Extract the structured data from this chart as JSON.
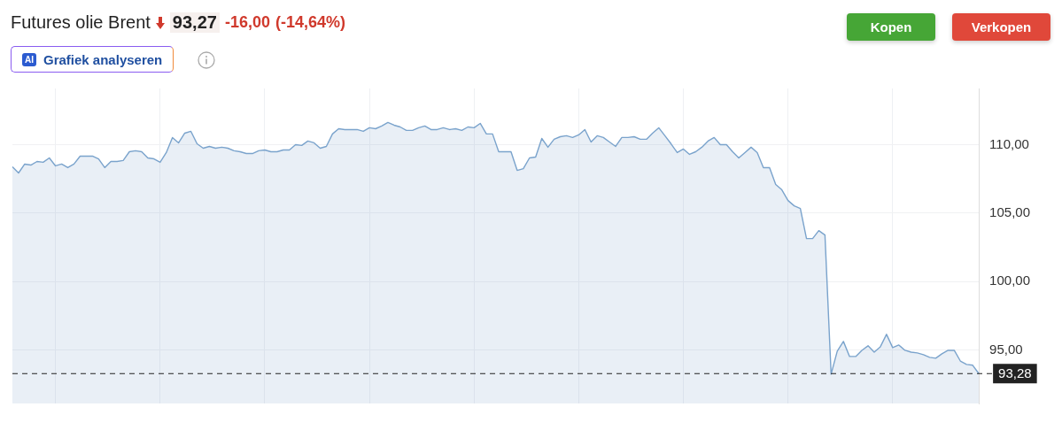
{
  "chart_data": {
    "type": "area",
    "title": "Futures olie Brent",
    "annotations": [
      "93,27",
      "-16,00",
      "(-14,64%)",
      "AI",
      "Grafiek analyseren",
      "Kopen",
      "Verkopen"
    ],
    "categories": [
      null,
      null,
      null,
      null,
      null,
      null,
      null,
      null,
      null,
      null,
      null,
      null,
      null,
      null,
      null,
      null,
      null,
      null,
      null,
      null,
      null,
      null,
      null,
      null,
      null,
      null,
      null,
      null,
      null,
      null,
      null,
      null,
      null,
      null,
      null,
      null,
      null,
      null,
      null,
      null,
      null,
      null,
      null,
      null,
      null,
      null,
      null,
      null,
      null,
      null,
      null,
      null,
      null,
      null,
      null,
      null,
      null,
      null,
      null,
      null,
      null,
      null,
      null,
      null,
      null,
      null,
      null,
      null,
      null,
      null,
      null,
      null,
      null,
      null,
      null,
      null,
      null,
      null,
      null,
      null,
      null,
      null,
      null,
      null,
      null,
      null,
      null,
      null,
      null,
      null,
      null,
      null,
      null,
      null,
      null,
      null,
      null,
      null,
      null,
      null,
      null,
      null,
      null,
      null,
      null,
      null,
      null,
      null,
      null,
      null,
      null,
      null,
      null,
      null,
      null,
      null,
      null,
      null,
      null,
      null,
      null,
      null,
      null,
      null,
      null,
      null,
      null,
      null,
      null,
      null,
      null,
      null,
      null,
      null,
      null,
      null,
      null,
      null,
      null,
      null,
      null,
      null,
      null,
      null,
      null,
      null,
      null,
      null,
      null,
      null,
      null,
      null,
      null,
      null,
      null,
      null,
      null,
      null
    ],
    "series": [
      {
        "color": "#7aa3cc",
        "values": [
          108.38,
          107.93,
          108.58,
          108.51,
          108.77,
          108.71,
          109.03,
          108.45,
          108.58,
          108.32,
          108.58,
          109.16,
          109.16,
          109.16,
          108.96,
          108.32,
          108.77,
          108.77,
          108.84,
          109.48,
          109.55,
          109.48,
          109.03,
          108.96,
          108.71,
          109.42,
          110.52,
          110.13,
          110.84,
          110.97,
          110.06,
          109.74,
          109.87,
          109.74,
          109.81,
          109.74,
          109.55,
          109.48,
          109.35,
          109.35,
          109.55,
          109.61,
          109.48,
          109.48,
          109.61,
          109.61,
          110.0,
          109.94,
          110.26,
          110.13,
          109.74,
          109.87,
          110.78,
          111.16,
          111.1,
          111.1,
          111.1,
          110.97,
          111.23,
          111.16,
          111.36,
          111.62,
          111.42,
          111.29,
          111.04,
          111.04,
          111.23,
          111.36,
          111.1,
          111.1,
          111.23,
          111.1,
          111.16,
          111.04,
          111.29,
          111.23,
          111.55,
          110.78,
          110.78,
          109.48,
          109.48,
          109.48,
          108.12,
          108.25,
          109.03,
          109.09,
          110.45,
          109.81,
          110.39,
          110.58,
          110.65,
          110.52,
          110.71,
          111.1,
          110.19,
          110.65,
          110.52,
          110.19,
          109.87,
          110.52,
          110.52,
          110.58,
          110.39,
          110.39,
          110.84,
          111.23,
          110.65,
          110.06,
          109.42,
          109.68,
          109.29,
          109.48,
          109.81,
          110.26,
          110.52,
          110.0,
          110.0,
          109.48,
          109.03,
          109.42,
          109.81,
          109.42,
          108.32,
          108.32,
          107.09,
          106.7,
          105.92,
          105.53,
          105.34,
          103.14,
          103.14,
          103.72,
          103.4,
          93.24,
          94.92,
          95.63,
          94.53,
          94.53,
          94.98,
          95.31,
          94.85,
          95.24,
          96.15,
          95.18,
          95.37,
          94.98,
          94.85,
          94.79,
          94.66,
          94.47,
          94.4,
          94.73,
          94.98,
          94.98,
          94.2,
          93.95,
          93.89,
          93.28
        ]
      }
    ],
    "ylim": [
      91.1,
      114.1
    ],
    "yticks": [
      {
        "value": 95,
        "label": "95,00"
      },
      {
        "value": 100,
        "label": "100,00"
      },
      {
        "value": 105,
        "label": "105,00"
      },
      {
        "value": 110,
        "label": "110,00"
      }
    ],
    "ref_lines": [
      {
        "axis": "y",
        "value": 93.28,
        "label": "93,28",
        "color": "#222222",
        "line_style": "dashed"
      }
    ],
    "grid": true,
    "legend": false,
    "marker": "none",
    "line_style": "solid"
  }
}
